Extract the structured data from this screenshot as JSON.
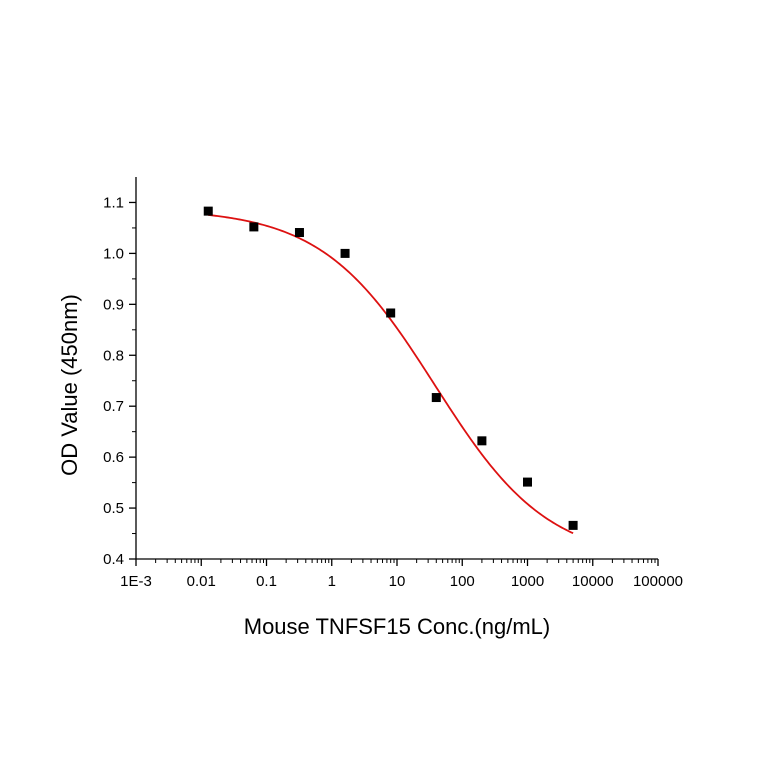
{
  "chart_data": {
    "type": "scatter",
    "title": "",
    "xlabel": "Mouse TNFSF15 Conc.(ng/mL)",
    "ylabel": "OD Value (450nm)",
    "x_scale": "log",
    "xlim": [
      0.001,
      100000
    ],
    "ylim": [
      0.4,
      1.15
    ],
    "x_ticks": [
      {
        "value": 0.001,
        "label": "1E-3"
      },
      {
        "value": 0.01,
        "label": "0.01"
      },
      {
        "value": 0.1,
        "label": "0.1"
      },
      {
        "value": 1,
        "label": "1"
      },
      {
        "value": 10,
        "label": "10"
      },
      {
        "value": 100,
        "label": "100"
      },
      {
        "value": 1000,
        "label": "1000"
      },
      {
        "value": 10000,
        "label": "10000"
      },
      {
        "value": 100000,
        "label": "100000"
      }
    ],
    "y_ticks": [
      {
        "value": 0.4,
        "label": "0.4"
      },
      {
        "value": 0.5,
        "label": "0.5"
      },
      {
        "value": 0.6,
        "label": "0.6"
      },
      {
        "value": 0.7,
        "label": "0.7"
      },
      {
        "value": 0.8,
        "label": "0.8"
      },
      {
        "value": 0.9,
        "label": "0.9"
      },
      {
        "value": 1.0,
        "label": "1.0"
      },
      {
        "value": 1.1,
        "label": "1.1"
      }
    ],
    "grid": false,
    "legend": "none",
    "series": [
      {
        "type": "scatter",
        "marker": "square",
        "color": "#000000",
        "x": [
          0.0128,
          0.064,
          0.32,
          1.6,
          8,
          40,
          200,
          1000,
          5000
        ],
        "y": [
          1.083,
          1.052,
          1.041,
          1.0,
          0.883,
          0.717,
          0.632,
          0.551,
          0.466
        ]
      },
      {
        "type": "line",
        "fit": "4PL",
        "color": "#dd1111",
        "x_range": [
          0.0128,
          5000
        ],
        "params": {
          "top": 1.088,
          "bottom": 0.395,
          "ec50": 38,
          "hill": 0.5
        }
      }
    ]
  }
}
